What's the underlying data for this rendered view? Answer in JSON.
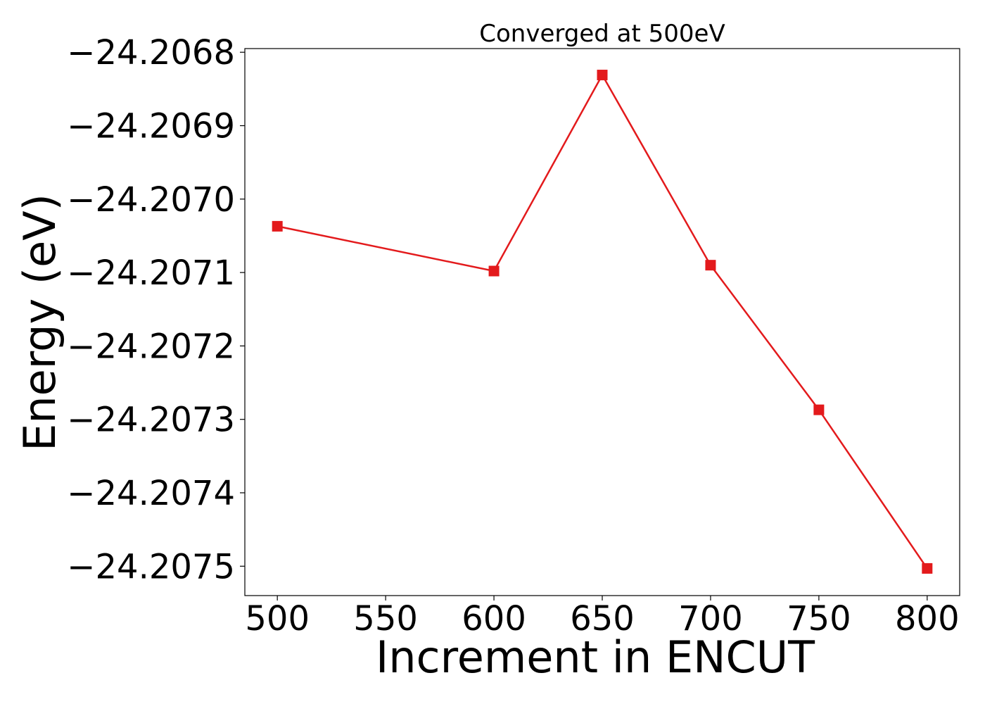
{
  "colors": {
    "series": "#e31a1c",
    "axes": "#000000",
    "background": "#ffffff"
  },
  "chart_data": {
    "type": "line",
    "title": "Converged at 500eV",
    "xlabel": "Increment in ENCUT",
    "ylabel": "Energy (eV)",
    "marker": "square",
    "grid": false,
    "x": [
      500,
      600,
      650,
      700,
      750,
      800
    ],
    "series": [
      {
        "values": [
          -24.207037,
          -24.207098,
          -24.206831,
          -24.20709,
          -24.207287,
          -24.207503
        ]
      }
    ],
    "xlim": [
      485,
      815
    ],
    "ylim": [
      -24.20754,
      -24.206795
    ],
    "xticks": [
      500,
      550,
      600,
      650,
      700,
      750,
      800
    ],
    "xtick_labels": [
      "500",
      "550",
      "600",
      "650",
      "700",
      "750",
      "800"
    ],
    "yticks": [
      -24.2068,
      -24.2069,
      -24.207,
      -24.2071,
      -24.2072,
      -24.2073,
      -24.2074,
      -24.2075
    ],
    "ytick_labels": [
      "−24.2068",
      "−24.2069",
      "−24.2070",
      "−24.2071",
      "−24.2072",
      "−24.2073",
      "−24.2074",
      "−24.2075"
    ]
  }
}
